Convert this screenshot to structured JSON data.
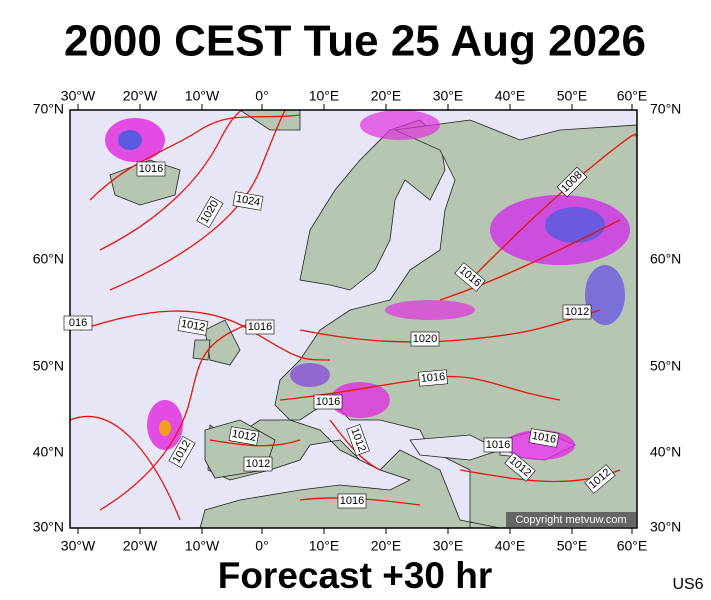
{
  "header": {
    "title": "2000 CEST Tue 25 Aug 2026"
  },
  "footer": {
    "forecast": "Forecast +30 hr",
    "code": "US6",
    "copyright": "Copyright metvuw.com"
  },
  "map": {
    "lon_labels": [
      "30°W",
      "20°W",
      "10°W",
      "0°",
      "10°E",
      "20°E",
      "30°E",
      "40°E",
      "50°E",
      "60°E"
    ],
    "lat_labels": [
      "70°N",
      "60°N",
      "50°N",
      "40°N",
      "30°N"
    ],
    "isobar_labels": [
      "1016",
      "1020",
      "1024",
      "1012",
      "1016",
      "016",
      "1020",
      "1016",
      "1016",
      "1012",
      "1012",
      "1012",
      "1012",
      "1016",
      "1016",
      "1012",
      "1016",
      "1008",
      "1016",
      "1012",
      "1012"
    ]
  }
}
